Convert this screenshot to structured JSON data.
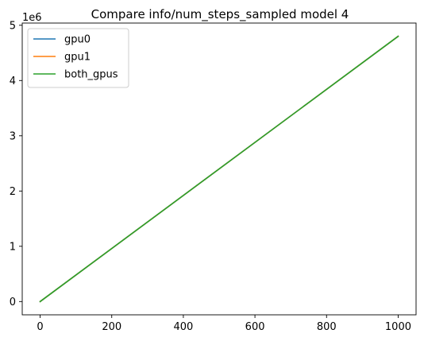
{
  "chart_data": {
    "type": "line",
    "title": "Compare info/num_steps_sampled model 4",
    "xlabel": "",
    "ylabel": "",
    "y_offset_text": "1e6",
    "xlim": [
      -50,
      1050
    ],
    "ylim": [
      -0.24,
      5.04
    ],
    "x_ticks": [
      0,
      200,
      400,
      600,
      800,
      1000
    ],
    "x_tick_labels": [
      "0",
      "200",
      "400",
      "600",
      "800",
      "1000"
    ],
    "y_ticks": [
      0,
      1,
      2,
      3,
      4,
      5
    ],
    "y_tick_labels": [
      "0",
      "1",
      "2",
      "3",
      "4",
      "5"
    ],
    "grid": false,
    "legend_position": "top-left",
    "series": [
      {
        "name": "gpu0",
        "color": "#1f77b4",
        "x": [
          0,
          1000
        ],
        "y": [
          0,
          4.8
        ]
      },
      {
        "name": "gpu1",
        "color": "#ff7f0e",
        "x": [
          0,
          1000
        ],
        "y": [
          0,
          4.8
        ]
      },
      {
        "name": "both_gpus",
        "color": "#2ca02c",
        "x": [
          0,
          1000
        ],
        "y": [
          0,
          4.8
        ]
      }
    ]
  }
}
